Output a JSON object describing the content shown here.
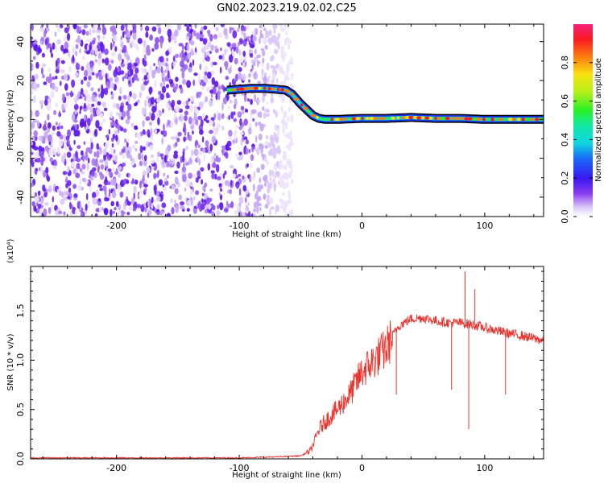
{
  "title": "GN02.2023.219.02.02.C25",
  "chart_data": [
    {
      "type": "heatmap",
      "xlabel": "Height of straight line (km)",
      "ylabel": "Frequency (Hz)",
      "xlim": [
        -270,
        148
      ],
      "ylim": [
        -50,
        49
      ],
      "xticks": [
        -200,
        -100,
        0,
        100
      ],
      "yticks": [
        -40,
        -20,
        0,
        20,
        40
      ],
      "colorbar": {
        "label": "Normalized spectral amplitude",
        "range": [
          0.0,
          1.0
        ],
        "ticks": [
          "0.0",
          "0.2",
          "0.4",
          "0.6",
          "0.8"
        ]
      },
      "noise_region_x": [
        -270,
        -62
      ],
      "signal_trace": {
        "x": [
          -110,
          -100,
          -90,
          -80,
          -70,
          -62,
          -57,
          -50,
          -45,
          -40,
          -35,
          -30,
          -20,
          0,
          20,
          40,
          60,
          80,
          100,
          120,
          148
        ],
        "y": [
          15,
          15.5,
          16,
          16,
          15.5,
          15,
          13,
          8,
          5,
          2,
          0.5,
          0,
          0,
          0.5,
          0.5,
          1,
          0.5,
          0.5,
          0,
          0,
          0
        ]
      }
    },
    {
      "type": "line",
      "xlabel": "Height of straight line (km)",
      "ylabel": "SNR (10 * v/v)",
      "multiplier_label": "(x10⁴)",
      "xlim": [
        -270,
        148
      ],
      "ylim": [
        0,
        1.95
      ],
      "xticks": [
        -200,
        -100,
        0,
        100
      ],
      "yticks": [
        "0.0",
        "0.5",
        "1.0",
        "1.5"
      ],
      "color": "#e8352e",
      "series": [
        {
          "x": [
            -270,
            -200,
            -100,
            -70,
            -50,
            -42,
            -38,
            -35,
            -30,
            -20,
            -10,
            0,
            10,
            20,
            25,
            30,
            40,
            50,
            60,
            70,
            80,
            90,
            100,
            110,
            120,
            130,
            140,
            148
          ],
          "values": [
            0.01,
            0.01,
            0.01,
            0.02,
            0.03,
            0.08,
            0.2,
            0.3,
            0.38,
            0.5,
            0.65,
            0.88,
            1.0,
            1.12,
            1.25,
            1.35,
            1.42,
            1.43,
            1.4,
            1.38,
            1.38,
            1.36,
            1.33,
            1.3,
            1.27,
            1.25,
            1.22,
            1.2
          ]
        }
      ],
      "spikes": [
        {
          "x": 28,
          "y": 0.65
        },
        {
          "x": 73,
          "y": 0.7
        },
        {
          "x": 84,
          "y": 1.9
        },
        {
          "x": 87,
          "y": 0.3
        },
        {
          "x": 92,
          "y": 1.72
        },
        {
          "x": 117,
          "y": 0.65
        }
      ]
    }
  ]
}
